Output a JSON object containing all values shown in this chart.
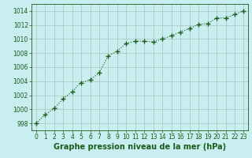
{
  "x": [
    0,
    1,
    2,
    3,
    4,
    5,
    6,
    7,
    8,
    9,
    10,
    11,
    12,
    13,
    14,
    15,
    16,
    17,
    18,
    19,
    20,
    21,
    22,
    23
  ],
  "y": [
    998.0,
    999.2,
    1000.1,
    1001.5,
    1002.5,
    1003.8,
    1004.2,
    1005.2,
    1007.6,
    1008.3,
    1009.4,
    1009.7,
    1009.7,
    1009.6,
    1010.0,
    1010.5,
    1011.0,
    1011.5,
    1012.1,
    1012.2,
    1013.0,
    1013.0,
    1013.5,
    1014.0
  ],
  "line_color": "#1a5c1a",
  "marker": "+",
  "markersize": 4,
  "linewidth": 0.8,
  "linestyle": "dotted",
  "background_color": "#c8eef0",
  "grid_color": "#b0c8c8",
  "axis_label_color": "#1a5c1a",
  "tick_color": "#1a5c1a",
  "xlabel": "Graphe pression niveau de la mer (hPa)",
  "xlabel_fontsize": 7,
  "tick_fontsize": 5.5,
  "ylim": [
    997,
    1015
  ],
  "xlim": [
    -0.5,
    23.5
  ],
  "yticks": [
    998,
    1000,
    1002,
    1004,
    1006,
    1008,
    1010,
    1012,
    1014
  ],
  "xticks": [
    0,
    1,
    2,
    3,
    4,
    5,
    6,
    7,
    8,
    9,
    10,
    11,
    12,
    13,
    14,
    15,
    16,
    17,
    18,
    19,
    20,
    21,
    22,
    23
  ]
}
